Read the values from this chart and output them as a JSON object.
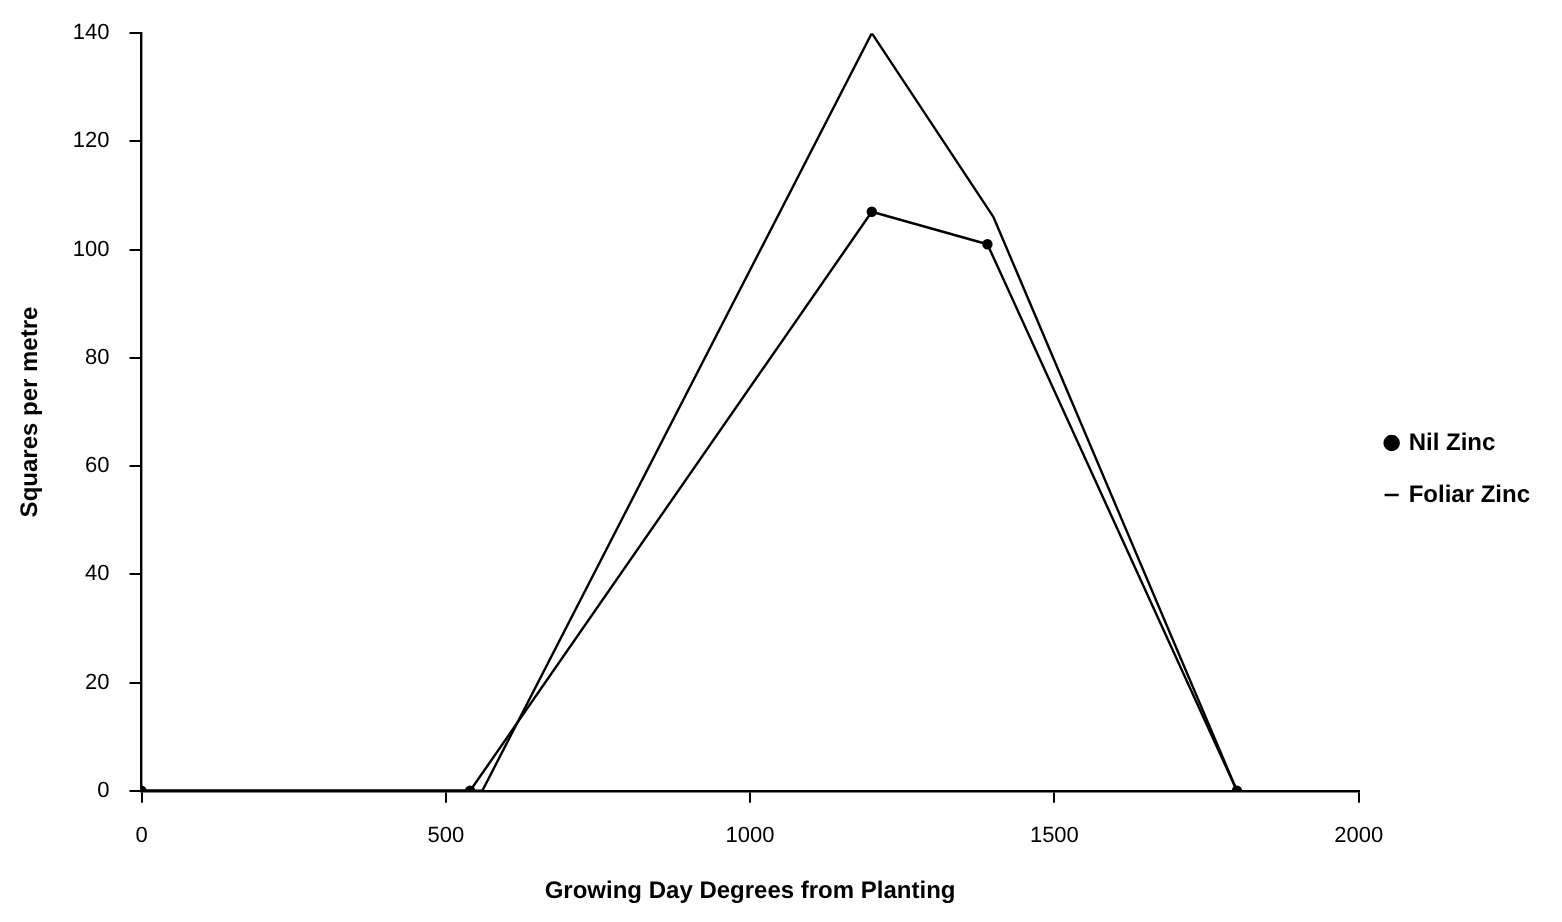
{
  "chart_data": {
    "type": "line",
    "xlabel": "Growing Day Degrees from Planting",
    "ylabel": "Squares per metre",
    "xlim": [
      0,
      2000
    ],
    "xticks": [
      0,
      500,
      1000,
      1500,
      2000
    ],
    "ylim": [
      0,
      140
    ],
    "yticks": [
      0,
      20,
      40,
      60,
      80,
      100,
      120,
      140
    ],
    "grid": false,
    "legend": "right",
    "series": [
      {
        "name": "Nil Zinc",
        "color": "#000000",
        "marker": "circle",
        "x": [
          0,
          540,
          1200,
          1390,
          1800
        ],
        "values": [
          0,
          0,
          107,
          101,
          0
        ]
      },
      {
        "name": "Foliar Zinc",
        "color": "#000000",
        "marker": "none",
        "x": [
          0,
          560,
          1200,
          1400,
          1800
        ],
        "values": [
          0,
          0,
          140,
          106,
          0
        ]
      }
    ]
  }
}
